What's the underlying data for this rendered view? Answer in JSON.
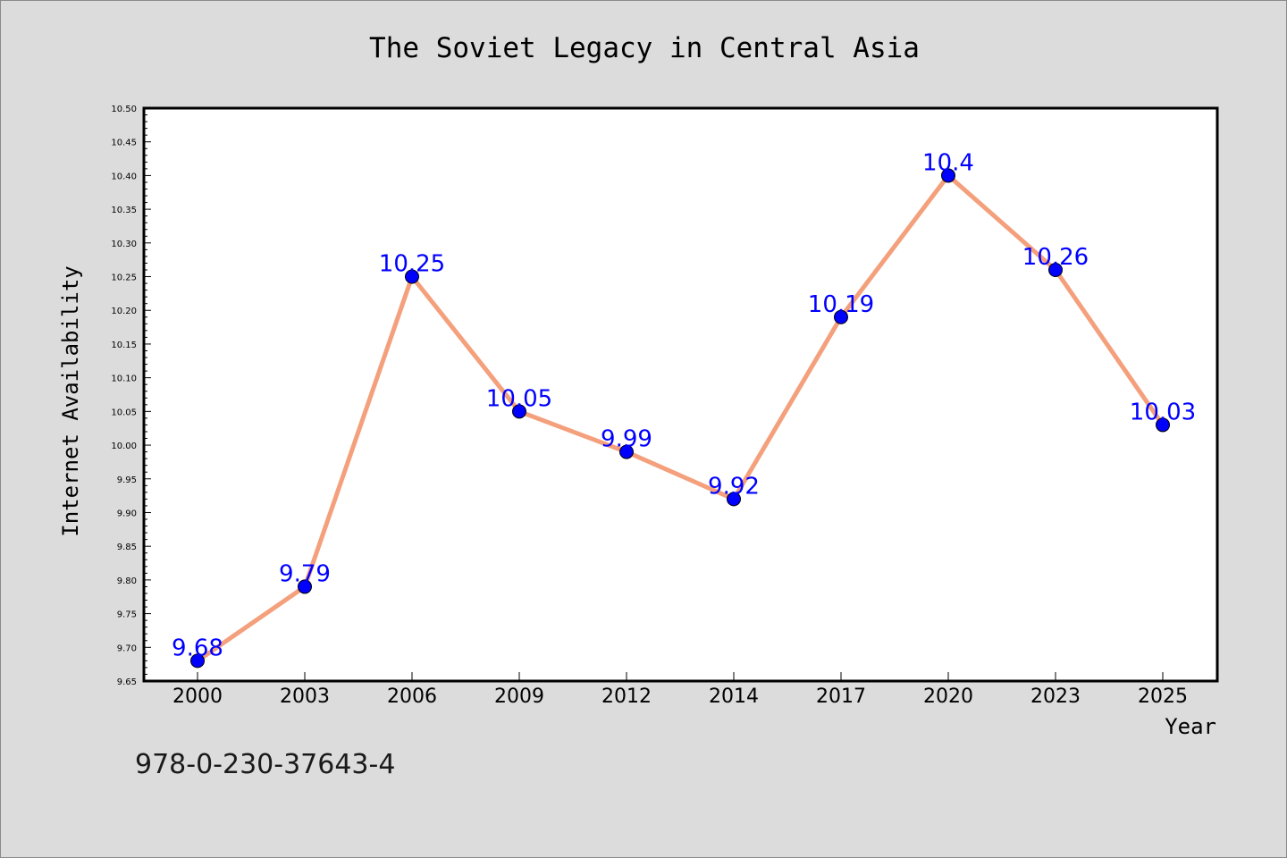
{
  "chart_data": {
    "type": "line",
    "title": "The Soviet Legacy in Central Asia",
    "xlabel": "Year",
    "ylabel": "Internet Availability",
    "categories": [
      "2000",
      "2003",
      "2006",
      "2009",
      "2012",
      "2014",
      "2017",
      "2020",
      "2023",
      "2025"
    ],
    "series": [
      {
        "values": [
          9.68,
          9.79,
          10.25,
          10.05,
          9.99,
          9.92,
          10.19,
          10.4,
          10.26,
          10.03
        ],
        "labels": [
          "9.68",
          "9.79",
          "10.25",
          "10.05",
          "9.99",
          "9.92",
          "10.19",
          "10.4",
          "10.26",
          "10.03"
        ]
      }
    ],
    "ylim": [
      9.65,
      10.5
    ],
    "yticks": [
      "9.65",
      "9.70",
      "9.75",
      "9.80",
      "9.85",
      "9.90",
      "9.95",
      "10.00",
      "10.05",
      "10.10",
      "10.15",
      "10.20",
      "10.25",
      "10.30",
      "10.35",
      "10.40",
      "10.45",
      "10.50"
    ],
    "grid": false,
    "legend": "none",
    "colors": {
      "line": "#f4a07c",
      "marker": "#0000ff",
      "data_label": "#0000ff",
      "background": "#dcdcdc",
      "plot_background": "#ffffff"
    }
  },
  "annotation": {
    "isbn": "978-0-230-37643-4"
  }
}
